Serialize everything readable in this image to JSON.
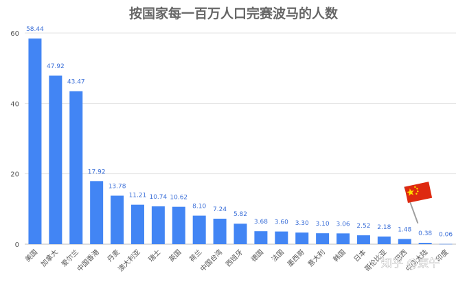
{
  "chart_data": {
    "type": "bar",
    "title": "按国家每一百万人口完赛波马的人数",
    "xlabel": "",
    "ylabel": "",
    "ylim": [
      0,
      60
    ],
    "yticks": [
      0,
      20,
      40,
      60
    ],
    "grid": true,
    "bar_color": "#4285f4",
    "categories": [
      "美国",
      "加拿大",
      "爱尔兰",
      "中国香港",
      "丹麦",
      "澳大利亚",
      "瑞士",
      "英国",
      "荷兰",
      "中国台湾",
      "西班牙",
      "德国",
      "法国",
      "墨西哥",
      "意大利",
      "韩国",
      "日本",
      "哥伦比亚",
      "巴西",
      "中国大陆",
      "印度"
    ],
    "values": [
      58.44,
      47.92,
      43.47,
      17.92,
      13.78,
      11.21,
      10.74,
      10.62,
      8.1,
      7.24,
      5.82,
      3.68,
      3.6,
      3.3,
      3.1,
      3.06,
      2.52,
      2.18,
      1.48,
      0.38,
      0.06
    ],
    "data_labels": [
      "58.44",
      "47.92",
      "43.47",
      "17.92",
      "13.78",
      "11.21",
      "10.74",
      "10.62",
      "8.10",
      "7.24",
      "5.82",
      "3.68",
      "3.60",
      "3.30",
      "3.10",
      "3.06",
      "2.52",
      "2.18",
      "1.48",
      "0.38",
      "0.06"
    ],
    "annotation_icon": "china-flag-icon"
  },
  "watermark": "知乎 @東午"
}
